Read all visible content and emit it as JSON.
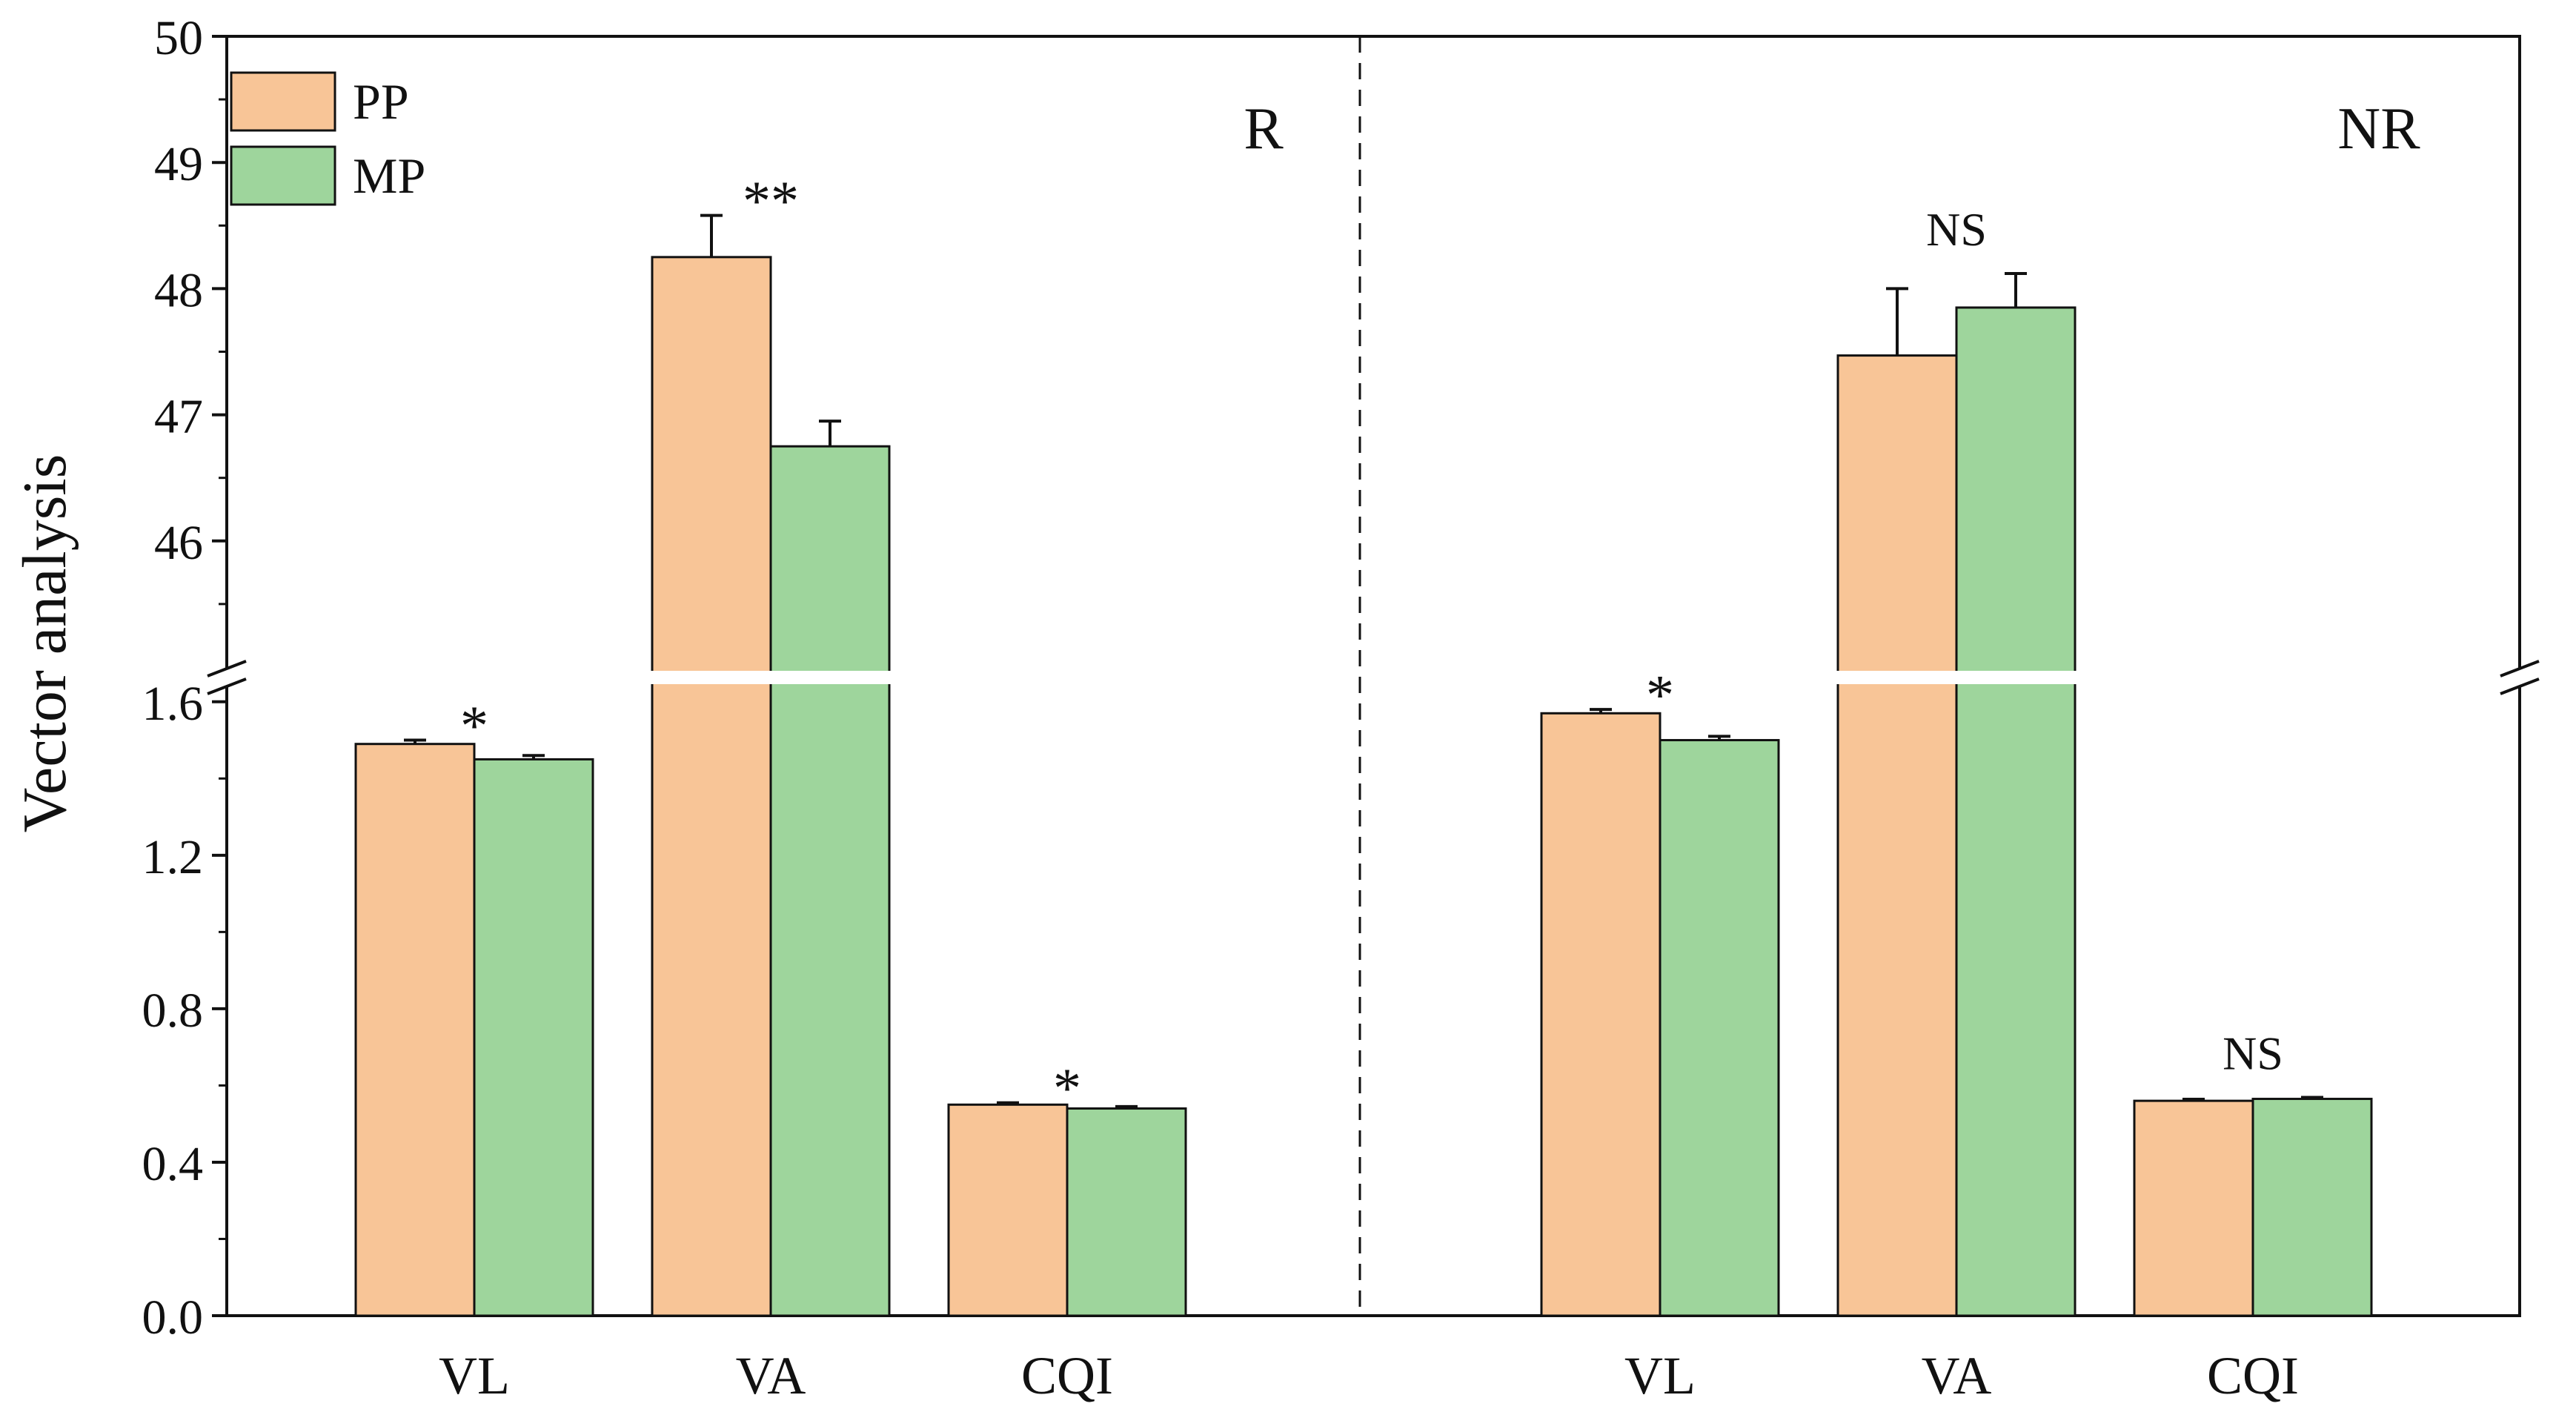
{
  "chart_data": {
    "type": "bar",
    "ylabel": "Vector analysis",
    "xlabel": "",
    "axis_break": {
      "lower_range": [
        0,
        1.7
      ],
      "upper_range": [
        45,
        50
      ]
    },
    "lower_ticks": [
      "0.0",
      "0.4",
      "0.8",
      "1.2",
      "1.6"
    ],
    "upper_ticks": [
      "46",
      "47",
      "48",
      "49",
      "50"
    ],
    "legend": [
      {
        "name": "PP",
        "color": "#f8c597"
      },
      {
        "name": "MP",
        "color": "#9ed59c"
      }
    ],
    "panels": [
      {
        "label": "R",
        "categories": [
          {
            "name": "VL",
            "pp": 1.49,
            "pp_err": 0.01,
            "mp": 1.45,
            "mp_err": 0.01,
            "sig": "*"
          },
          {
            "name": "VA",
            "pp": 48.25,
            "pp_err": 0.33,
            "mp": 46.75,
            "mp_err": 0.2,
            "sig": "**"
          },
          {
            "name": "CQI",
            "pp": 0.55,
            "pp_err": 0.005,
            "mp": 0.54,
            "mp_err": 0.005,
            "sig": "*"
          }
        ]
      },
      {
        "label": "NR",
        "categories": [
          {
            "name": "VL",
            "pp": 1.57,
            "pp_err": 0.01,
            "mp": 1.5,
            "mp_err": 0.01,
            "sig": "*"
          },
          {
            "name": "VA",
            "pp": 47.47,
            "pp_err": 0.53,
            "mp": 47.85,
            "mp_err": 0.27,
            "sig": "NS"
          },
          {
            "name": "CQI",
            "pp": 0.56,
            "pp_err": 0.004,
            "mp": 0.565,
            "mp_err": 0.004,
            "sig": "NS"
          }
        ]
      }
    ]
  }
}
